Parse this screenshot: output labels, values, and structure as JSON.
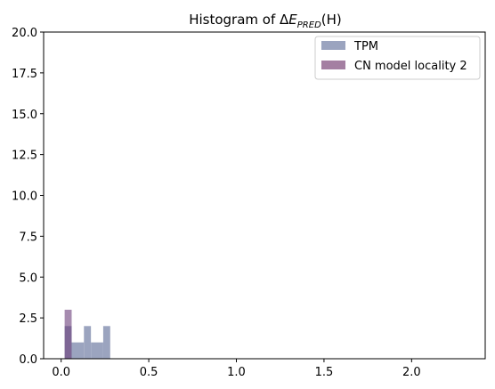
{
  "chart_data": {
    "type": "bar",
    "title_prefix": "Histogram of Δ",
    "title_symbol": "E",
    "title_subscript": "PRED",
    "title_suffix": "(H)",
    "xlim": [
      -0.1,
      2.42
    ],
    "ylim": [
      0,
      20
    ],
    "x_ticks": [
      0.0,
      0.5,
      1.0,
      1.5,
      2.0
    ],
    "x_tick_labels": [
      "0.0",
      "0.5",
      "1.0",
      "1.5",
      "2.0"
    ],
    "y_ticks": [
      0.0,
      2.5,
      5.0,
      7.5,
      10.0,
      12.5,
      15.0,
      17.5,
      20.0
    ],
    "y_tick_labels": [
      "0.0",
      "2.5",
      "5.0",
      "7.5",
      "10.0",
      "12.5",
      "15.0",
      "17.5",
      "20.0"
    ],
    "grid": false,
    "legend_placement": "top-right",
    "series": [
      {
        "name": "TPM",
        "color": "#9ba4bf",
        "bins": [
          {
            "x0": 0.02,
            "x1": 0.06,
            "count": 2
          },
          {
            "x0": 0.06,
            "x1": 0.13,
            "count": 1
          },
          {
            "x0": 0.13,
            "x1": 0.17,
            "count": 2
          },
          {
            "x0": 0.17,
            "x1": 0.24,
            "count": 1
          },
          {
            "x0": 0.24,
            "x1": 0.28,
            "count": 2
          }
        ]
      },
      {
        "name": "CN model locality 2",
        "color": "#a47fa2",
        "bins": [
          {
            "x0": 0.02,
            "x1": 0.06,
            "count": 3
          }
        ]
      }
    ]
  }
}
